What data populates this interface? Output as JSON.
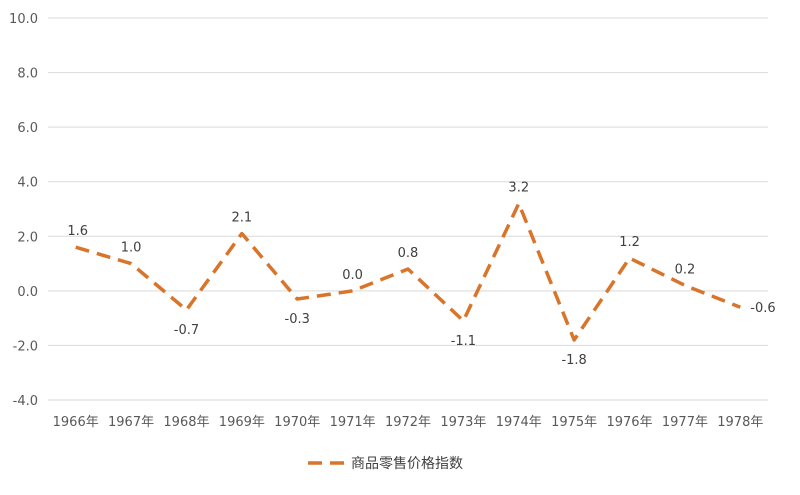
{
  "chart_data": {
    "type": "line",
    "title": "",
    "xlabel": "",
    "ylabel": "",
    "categories": [
      "1966年",
      "1967年",
      "1968年",
      "1969年",
      "1970年",
      "1971年",
      "1972年",
      "1973年",
      "1974年",
      "1975年",
      "1976年",
      "1977年",
      "1978年"
    ],
    "ylim": [
      -4.0,
      10.0
    ],
    "yticks": [
      "10.0",
      "8.0",
      "6.0",
      "4.0",
      "2.0",
      "0.0",
      "-2.0",
      "-4.0"
    ],
    "grid": true,
    "legend_position": "bottom",
    "series": [
      {
        "name": "商品零售价格指数",
        "color": "#D9742B",
        "style": "dashed",
        "values": [
          1.6,
          1.0,
          -0.7,
          2.1,
          -0.3,
          0.0,
          0.8,
          -1.1,
          3.2,
          -1.8,
          1.2,
          0.2,
          -0.6
        ],
        "labels": [
          "1.6",
          "1.0",
          "-0.7",
          "2.1",
          "-0.3",
          "0.0",
          "0.8",
          "-1.1",
          "3.2",
          "-1.8",
          "1.2",
          "0.2",
          "-0.6"
        ]
      }
    ]
  }
}
